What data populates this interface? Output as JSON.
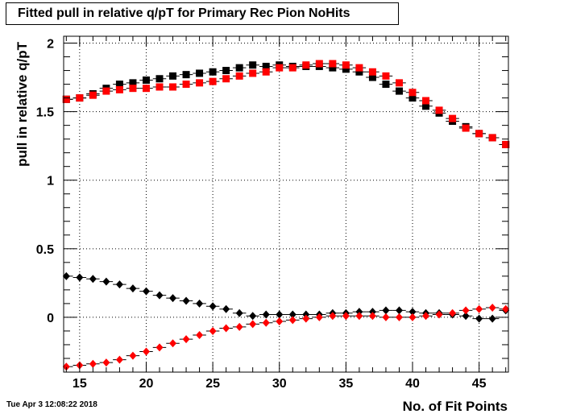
{
  "title": "Fitted pull in relative q/pT for Primary Rec Pion NoHits",
  "footer": "Tue Apr  3 12:08:22 2018",
  "chart_data": {
    "type": "scatter",
    "title": "Fitted pull in relative q/pT for Primary Rec Pion NoHits",
    "xlabel": "No. of Fit Points",
    "ylabel": "pull in relative q/pT",
    "xlim": [
      13.8,
      47.2
    ],
    "ylim": [
      -0.4,
      2.05
    ],
    "xticks": [
      15,
      20,
      25,
      30,
      35,
      40,
      45
    ],
    "yticks": [
      0,
      0.5,
      1,
      1.5,
      2
    ],
    "grid": true,
    "x": [
      14,
      15,
      16,
      17,
      18,
      19,
      20,
      21,
      22,
      23,
      24,
      25,
      26,
      27,
      28,
      29,
      30,
      31,
      32,
      33,
      34,
      35,
      36,
      37,
      38,
      39,
      40,
      41,
      42,
      43,
      44,
      45,
      46,
      47
    ],
    "series": [
      {
        "marker": "square",
        "color": "#000000",
        "values": [
          1.59,
          1.6,
          1.63,
          1.67,
          1.7,
          1.71,
          1.73,
          1.74,
          1.76,
          1.77,
          1.78,
          1.79,
          1.8,
          1.82,
          1.84,
          1.83,
          1.84,
          1.83,
          1.83,
          1.83,
          1.82,
          1.81,
          1.79,
          1.75,
          1.7,
          1.65,
          1.6,
          1.54,
          1.49,
          1.43,
          1.39,
          1.34,
          1.31,
          1.26
        ]
      },
      {
        "marker": "square",
        "color": "#ff0000",
        "values": [
          1.59,
          1.6,
          1.62,
          1.65,
          1.66,
          1.67,
          1.67,
          1.68,
          1.68,
          1.7,
          1.71,
          1.72,
          1.74,
          1.76,
          1.78,
          1.79,
          1.82,
          1.82,
          1.84,
          1.85,
          1.85,
          1.84,
          1.82,
          1.79,
          1.76,
          1.71,
          1.64,
          1.58,
          1.51,
          1.45,
          1.38,
          1.34,
          1.31,
          1.26
        ]
      },
      {
        "marker": "diamond",
        "color": "#000000",
        "values": [
          0.3,
          0.29,
          0.28,
          0.26,
          0.24,
          0.21,
          0.19,
          0.16,
          0.14,
          0.12,
          0.1,
          0.08,
          0.06,
          0.03,
          0.01,
          0.02,
          0.02,
          0.02,
          0.02,
          0.02,
          0.03,
          0.03,
          0.04,
          0.04,
          0.05,
          0.05,
          0.04,
          0.03,
          0.03,
          0.02,
          0.01,
          -0.01,
          -0.01,
          0.05
        ]
      },
      {
        "marker": "diamond",
        "color": "#ff0000",
        "values": [
          -0.36,
          -0.35,
          -0.34,
          -0.33,
          -0.31,
          -0.28,
          -0.25,
          -0.22,
          -0.19,
          -0.16,
          -0.13,
          -0.1,
          -0.08,
          -0.07,
          -0.05,
          -0.04,
          -0.03,
          -0.02,
          -0.01,
          0.0,
          0.01,
          0.01,
          0.01,
          0.01,
          0.0,
          0.0,
          0.0,
          0.01,
          0.02,
          0.03,
          0.05,
          0.06,
          0.07,
          0.06
        ]
      }
    ]
  }
}
